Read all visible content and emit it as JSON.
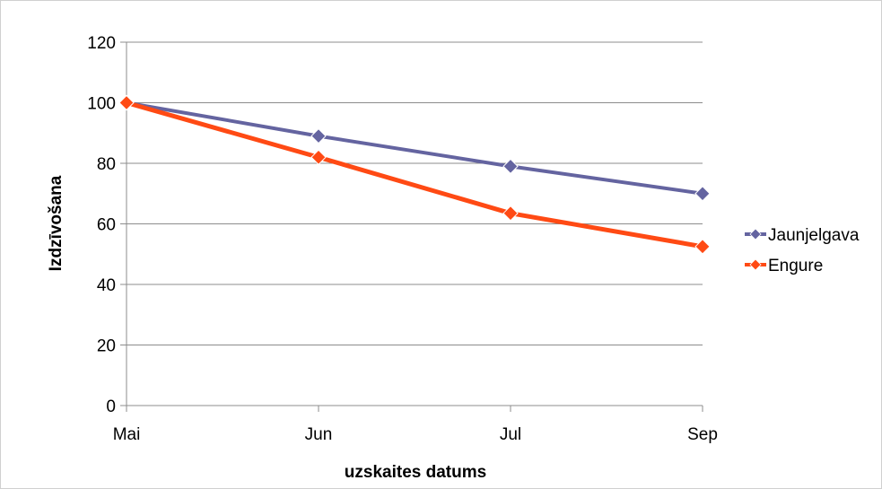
{
  "chart_data": {
    "type": "line",
    "categories": [
      "Mai",
      "Jun",
      "Jul",
      "Sep"
    ],
    "series": [
      {
        "name": "Jaunjelgava",
        "values": [
          100,
          89,
          79,
          70
        ],
        "color": "#6464a0",
        "marker": "diamond"
      },
      {
        "name": "Engure",
        "values": [
          100,
          82,
          63.5,
          52.5
        ],
        "color": "#ff4a14",
        "marker": "diamond"
      }
    ],
    "title": "",
    "xlabel": "uzskaites datums",
    "ylabel": "Izdzīvošana",
    "ylim": [
      0,
      120
    ],
    "yticks": [
      0,
      20,
      40,
      60,
      80,
      100,
      120
    ],
    "grid": true,
    "legend_position": "right"
  }
}
